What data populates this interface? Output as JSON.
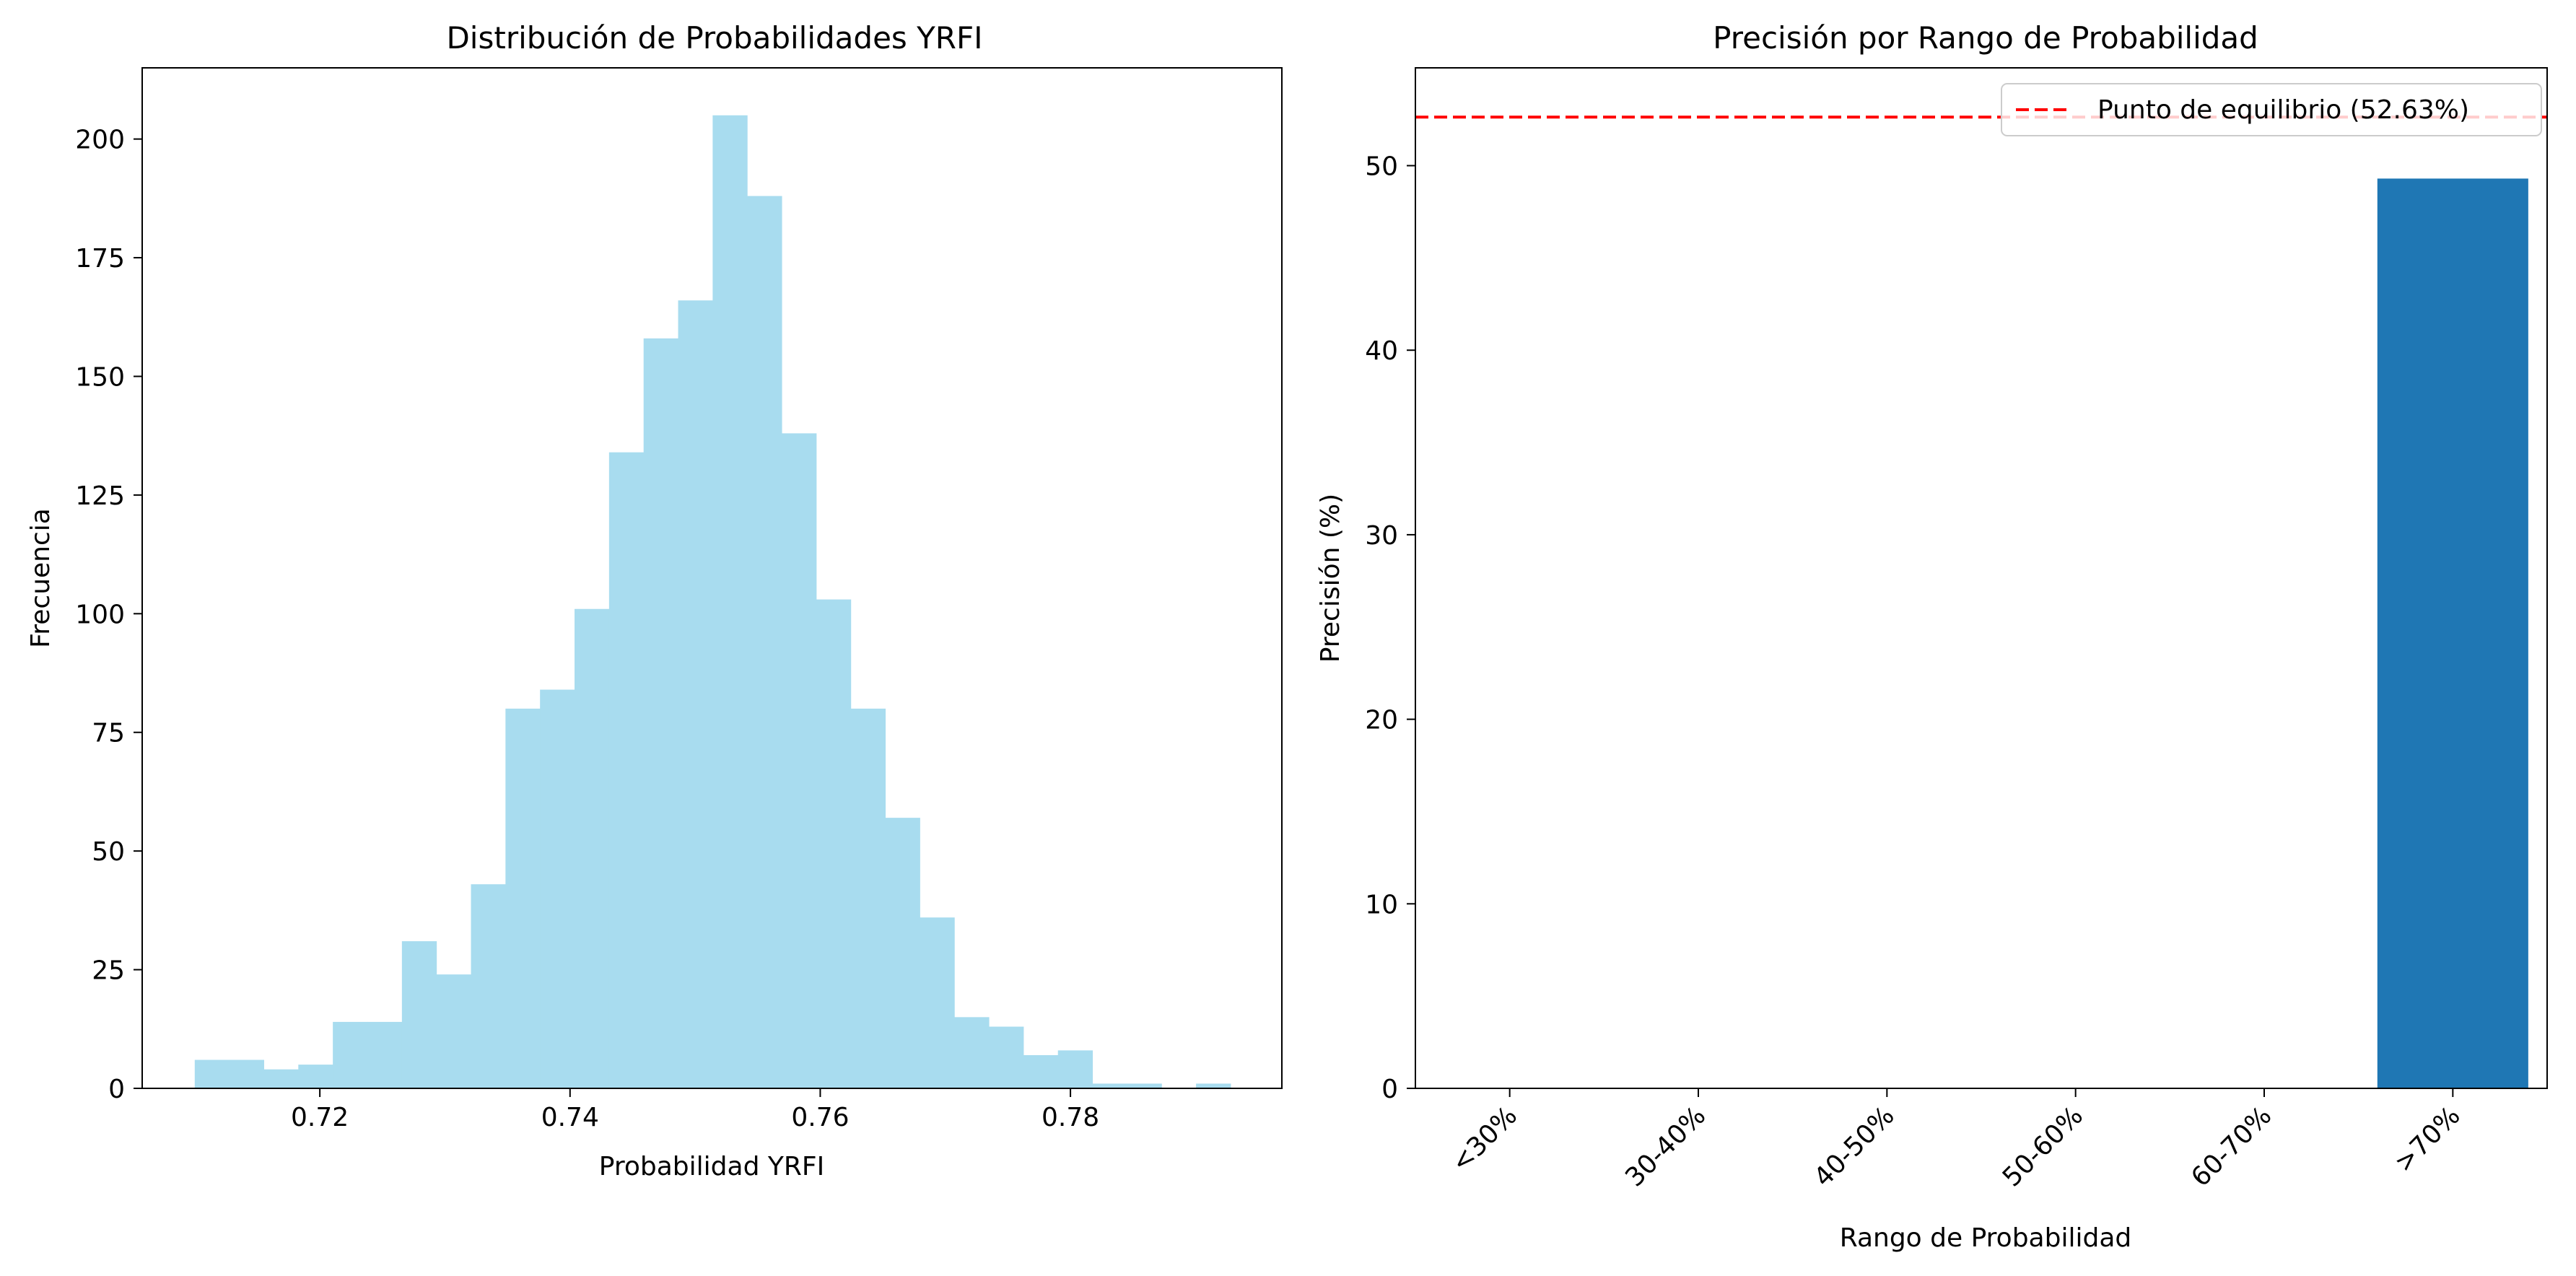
{
  "chart_data": [
    {
      "type": "bar",
      "subtype": "histogram",
      "title": "Distribución de Probabilidades YRFI",
      "xlabel": "Probabilidad YRFI",
      "ylabel": "Frecuencia",
      "xlim": [
        0.7058,
        0.7969
      ],
      "ylim": [
        0,
        215
      ],
      "xticks": [
        0.72,
        0.74,
        0.76,
        0.78
      ],
      "yticks": [
        0,
        25,
        50,
        75,
        100,
        125,
        150,
        175,
        200
      ],
      "bin_start": 0.71,
      "bin_width": 0.00276,
      "counts": [
        6,
        6,
        4,
        5,
        14,
        14,
        31,
        24,
        43,
        80,
        84,
        101,
        134,
        158,
        166,
        205,
        188,
        138,
        103,
        80,
        57,
        36,
        15,
        13,
        7,
        8,
        1,
        1,
        0,
        1
      ],
      "color": "#a8dcef",
      "grid": false
    },
    {
      "type": "bar",
      "title": "Precisión por Rango de Probabilidad",
      "xlabel": "Rango de Probabilidad",
      "ylabel": "Precisión (%)",
      "categories": [
        "<30%",
        "30-40%",
        "40-50%",
        "50-60%",
        "60-70%",
        ">70%"
      ],
      "values": [
        0,
        0,
        0,
        0,
        0,
        49.3
      ],
      "ylim": [
        0,
        55.3
      ],
      "yticks": [
        0,
        10,
        20,
        30,
        40,
        50
      ],
      "color": "#1f77b4",
      "reference_line": {
        "label": "Punto de equilibrio (52.63%)",
        "value": 52.63,
        "color": "#ff0000",
        "style": "dashed"
      },
      "legend": "top-right",
      "grid": false
    }
  ]
}
